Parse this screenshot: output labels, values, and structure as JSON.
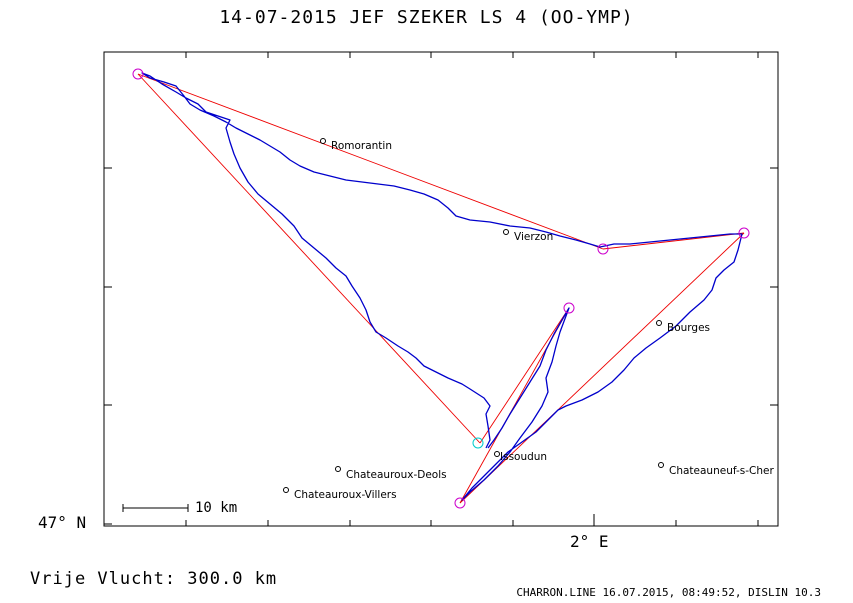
{
  "title": "14-07-2015    JEF SZEKER    LS 4 (OO-YMP)",
  "axes": {
    "lat_label": "47° N",
    "lon_label": "2° E"
  },
  "distance_label": "Vrije Vlucht:  300.0 km",
  "footer": "CHARRON.LINE 16.07.2015, 08:49:52, DISLIN 10.3",
  "scale_bar_label": "10 km",
  "towns": [
    {
      "name": "Romorantin"
    },
    {
      "name": "Vierzon"
    },
    {
      "name": "Bourges"
    },
    {
      "name": "Issoudun"
    },
    {
      "name": "Chateauroux-Deols"
    },
    {
      "name": "Chateauroux-Villers"
    },
    {
      "name": "Chateauneuf-s-Cher"
    }
  ],
  "colors": {
    "track": "#0000cc",
    "task_line": "#ee0000",
    "turnpoint": "#cc00cc",
    "start": "#00cccc",
    "frame": "#000000"
  }
}
